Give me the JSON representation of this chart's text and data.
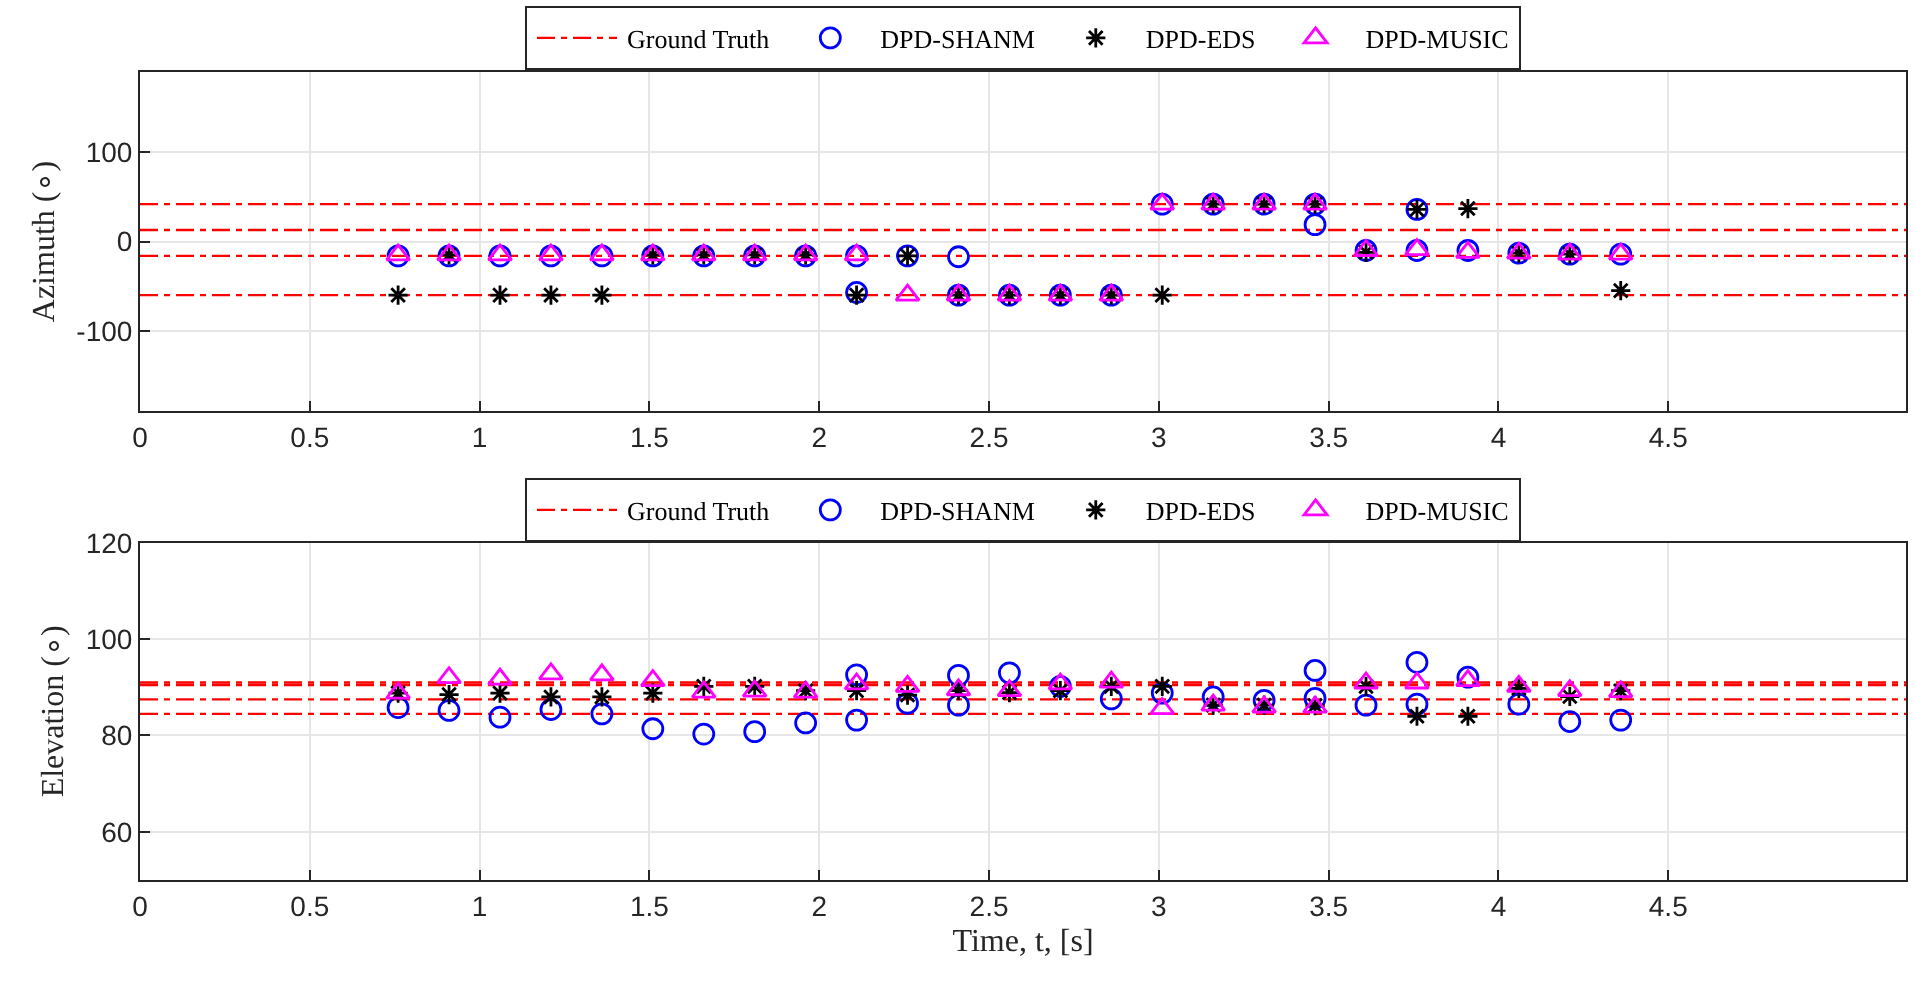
{
  "chart_data": [
    {
      "type": "scatter",
      "ylabel": "Azimuth (∘)",
      "xlim": [
        0,
        5.2
      ],
      "xticks": [
        0,
        0.5,
        1,
        1.5,
        2,
        2.5,
        3,
        3.5,
        4,
        4.5
      ],
      "ylim": [
        -190,
        190
      ],
      "yticks": [
        -100,
        0,
        100
      ],
      "grid": true,
      "legend": "top",
      "ref_lines": [
        {
          "axis": "y",
          "value": 42,
          "label": "Ground Truth",
          "color": "#ff0000",
          "line_style": "dashdot"
        },
        {
          "axis": "y",
          "value": 13,
          "color": "#ff0000",
          "line_style": "dashdot"
        },
        {
          "axis": "y",
          "value": -16,
          "color": "#ff0000",
          "line_style": "dashdot"
        },
        {
          "axis": "y",
          "value": -60,
          "color": "#ff0000",
          "line_style": "dashdot"
        }
      ],
      "series": [
        {
          "name": "DPD-SHANM",
          "color": "#0000ff",
          "marker": "circle",
          "x": [
            0.76,
            0.91,
            1.06,
            1.21,
            1.36,
            1.51,
            1.66,
            1.81,
            1.96,
            2.11,
            2.11,
            2.26,
            2.41,
            2.41,
            2.56,
            2.71,
            2.86,
            3.01,
            3.16,
            3.31,
            3.46,
            3.46,
            3.61,
            3.76,
            3.76,
            3.91,
            4.06,
            4.21,
            4.36
          ],
          "values": [
            -16,
            -16,
            -16,
            -16,
            -16,
            -16,
            -16,
            -16,
            -16,
            -16,
            -57,
            -16,
            -17,
            -60,
            -60,
            -60,
            -60,
            42,
            42,
            42,
            42,
            19,
            -10,
            36,
            -10,
            -10,
            -13,
            -14,
            -14
          ]
        },
        {
          "name": "DPD-EDS",
          "color": "#000000",
          "marker": "cross",
          "x": [
            0.76,
            0.91,
            1.06,
            1.21,
            1.36,
            1.51,
            1.66,
            1.81,
            1.96,
            2.11,
            2.26,
            2.41,
            2.56,
            2.71,
            2.86,
            3.01,
            3.16,
            3.31,
            3.46,
            3.61,
            3.76,
            3.91,
            4.06,
            4.21,
            4.36
          ],
          "values": [
            -60,
            -15,
            -60,
            -60,
            -60,
            -15,
            -15,
            -15,
            -15,
            -60,
            -16,
            -60,
            -60,
            -60,
            -60,
            -60,
            42,
            42,
            42,
            -12,
            36,
            37,
            -13,
            -14,
            -55
          ]
        },
        {
          "name": "DPD-MUSIC",
          "color": "#ff00ff",
          "marker": "triangle",
          "x": [
            0.76,
            0.91,
            1.06,
            1.21,
            1.36,
            1.51,
            1.66,
            1.81,
            1.96,
            2.11,
            2.26,
            2.41,
            2.56,
            2.71,
            2.86,
            3.01,
            3.16,
            3.31,
            3.46,
            3.61,
            3.76,
            3.91,
            4.06,
            4.21,
            4.36
          ],
          "values": [
            -15,
            -15,
            -15,
            -15,
            -15,
            -15,
            -15,
            -15,
            -15,
            -15,
            -60,
            -60,
            -60,
            -60,
            -60,
            42,
            42,
            42,
            42,
            -10,
            -9,
            -12,
            -13,
            -14,
            -14
          ]
        }
      ]
    },
    {
      "type": "scatter",
      "ylabel": "Elevation (∘)",
      "xlabel": "Time, t, [s]",
      "xlim": [
        0,
        5.2
      ],
      "xticks": [
        0,
        0.5,
        1,
        1.5,
        2,
        2.5,
        3,
        3.5,
        4,
        4.5
      ],
      "ylim": [
        50,
        120
      ],
      "yticks": [
        60,
        80,
        100,
        120
      ],
      "grid": true,
      "legend": "top",
      "ref_lines": [
        {
          "axis": "y",
          "value": 91,
          "label": "Ground Truth",
          "color": "#ff0000",
          "line_style": "dashdot"
        },
        {
          "axis": "y",
          "value": 90.5,
          "color": "#ff0000",
          "line_style": "dashdot"
        },
        {
          "axis": "y",
          "value": 87.5,
          "color": "#ff0000",
          "line_style": "dashdot"
        },
        {
          "axis": "y",
          "value": 84.5,
          "color": "#ff0000",
          "line_style": "dashdot"
        }
      ],
      "series": [
        {
          "name": "DPD-SHANM",
          "color": "#0000ff",
          "marker": "circle",
          "x": [
            0.76,
            0.91,
            1.06,
            1.21,
            1.36,
            1.51,
            1.66,
            1.81,
            1.96,
            2.11,
            2.11,
            2.26,
            2.41,
            2.41,
            2.56,
            2.71,
            2.86,
            3.01,
            3.16,
            3.31,
            3.46,
            3.46,
            3.61,
            3.76,
            3.76,
            3.91,
            4.06,
            4.21,
            4.36
          ],
          "values": [
            85.8,
            85.2,
            83.8,
            85.4,
            84.5,
            81.4,
            80.3,
            80.8,
            82.6,
            92.6,
            83.2,
            86.7,
            92.5,
            86.3,
            93,
            90.2,
            87.6,
            88.8,
            88,
            87.3,
            93.5,
            87.7,
            86.3,
            95.2,
            86.5,
            92.1,
            86.5,
            82.9,
            83.2
          ]
        },
        {
          "name": "DPD-EDS",
          "color": "#000000",
          "marker": "cross",
          "x": [
            0.76,
            0.91,
            1.06,
            1.21,
            1.36,
            1.51,
            1.66,
            1.81,
            1.96,
            2.11,
            2.26,
            2.41,
            2.56,
            2.71,
            2.86,
            3.01,
            3.16,
            3.31,
            3.46,
            3.61,
            3.76,
            3.91,
            4.06,
            4.21,
            4.36
          ],
          "values": [
            88.8,
            88.5,
            88.8,
            88,
            88,
            88.8,
            90.2,
            90.2,
            89.3,
            89.3,
            88.4,
            89.3,
            88.9,
            89.3,
            90.2,
            90.2,
            86.3,
            86.3,
            86.2,
            90.2,
            84,
            84,
            89.8,
            88.1,
            89.3
          ]
        },
        {
          "name": "DPD-MUSIC",
          "color": "#ff00ff",
          "marker": "triangle",
          "x": [
            0.76,
            0.91,
            1.06,
            1.21,
            1.36,
            1.51,
            1.66,
            1.81,
            1.96,
            2.11,
            2.26,
            2.41,
            2.56,
            2.71,
            2.86,
            3.01,
            3.16,
            3.31,
            3.46,
            3.61,
            3.76,
            3.91,
            4.06,
            4.21,
            4.36
          ],
          "values": [
            88.8,
            92,
            91.7,
            92.8,
            92.6,
            91.4,
            89,
            89.2,
            89,
            90.7,
            90.2,
            89.5,
            89.3,
            90.7,
            91.1,
            85.6,
            86.3,
            85.9,
            85.9,
            90.9,
            90.9,
            91.4,
            90.2,
            89.3,
            89.1
          ]
        }
      ]
    }
  ]
}
